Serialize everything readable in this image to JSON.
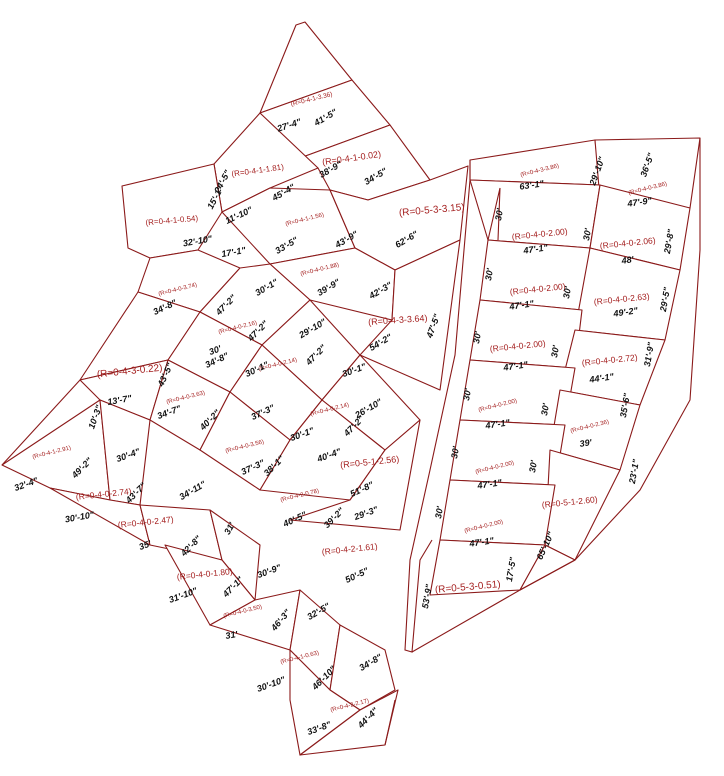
{
  "colors": {
    "boundary": "#8b1a1a",
    "area_text": "#a41e1e",
    "dimension_text": "#111111",
    "background": "#ffffff"
  },
  "area_labels": [
    "(R=0-4-1-3.36)",
    "(R=0-4-1-1.81)",
    "(R=0-4-1-0.02)",
    "(R=0-5-3-3.15)",
    "(R=0-4-1-0.54)",
    "(R=0-4-1-1.56)",
    "(R=0-4-0-1.88)",
    "(R=0-4-0-3.74)",
    "(R=0-4-0-2.16)",
    "(R=0-4-3-3.64)",
    "(R=0-4-0-2.14)",
    "(R=0-4-3-0.22)",
    "(R=0-4-0-3.63)",
    "(R=0-4-0-2.14)",
    "(R=0-4-0-3.56)",
    "(R=0-4-1-2.91)",
    "(R=0-5-1-2.56)",
    "(R=0-4-2-0.78)",
    "(R=0-4-0-2.74)",
    "(R=0-4-0-2.47)",
    "(R=0-4-2-1.61)",
    "(R=0-4-0-1.80)",
    "(R=0-4-0-3.50)",
    "(R=0-4-1-0.63)",
    "(R=0-4-2-2.17)",
    "(R=0-4-3-3.86)",
    "(R=0-4-0-3.86)",
    "(R=0-4-0-2.00)",
    "(R=0-4-0-2.06)",
    "(R=0-4-0-2.00)",
    "(R=0-4-0-2.63)",
    "(R=0-4-0-2.00)",
    "(R=0-4-0-2.72)",
    "(R=0-4-0-2.00)",
    "(R=0-4-0-2.36)",
    "(R=0-4-0-2.00)",
    "(R=0-5-1-2.60)",
    "(R=0-4-0-2.00)",
    "(R=0-5-3-0.51)"
  ],
  "dimension_labels": [
    "27'-4\"",
    "41'-5\"",
    "24'-5\"",
    "45'-4\"",
    "38'-9\"",
    "34'-5\"",
    "11'-10\"",
    "15'-1\"",
    "32'-10\"",
    "33'-5\"",
    "43'-9\"",
    "62'-6\"",
    "17'-1\"",
    "30'-1\"",
    "39'-9\"",
    "42'-3\"",
    "34'-8\"",
    "47'-2\"",
    "29'-10\"",
    "54'-2\"",
    "47'-5\"",
    "30'",
    "43'-5\"",
    "34'-8\"",
    "47'-2\"",
    "30'-1\"",
    "30'-1\"",
    "47'-2\"",
    "13'-7\"",
    "10'-3\"",
    "34'-7\"",
    "37'-3\"",
    "40'-2\"",
    "26'-10\"",
    "30'-4\"",
    "30'-1\"",
    "47'-2\"",
    "49'-2\"",
    "37'-3\"",
    "40'-4\"",
    "38'-1\"",
    "32'-4\"",
    "34'-11\"",
    "51'-8\"",
    "43'-7\"",
    "30'-10\"",
    "29'-3\"",
    "40'-5\"",
    "39'-2\"",
    "35'",
    "42'-8\"",
    "31'",
    "50'-5\"",
    "30'-9\"",
    "31'-10\"",
    "47'-1\"",
    "32'-5\"",
    "31'",
    "46'-3\"",
    "34'-8\"",
    "30'-10\"",
    "46'-10\"",
    "33'-8\"",
    "44'-4\"",
    "63'-1\"",
    "29'-10\"",
    "36'-5\"",
    "47'-9\"",
    "30'",
    "47'-1\"",
    "30'",
    "29'-8\"",
    "48'",
    "30'",
    "30'",
    "47'-1\"",
    "49'-2\"",
    "29'-5\"",
    "30'",
    "30'",
    "47'-1\"",
    "31'-9\"",
    "44'-1\"",
    "30'",
    "30'",
    "47'-1\"",
    "35'-6\"",
    "39'",
    "30'",
    "30'",
    "47'-1\"",
    "23'-1\"",
    "30'",
    "47'-1\"",
    "17'-5\"",
    "65'-10\"",
    "53'-9\""
  ]
}
